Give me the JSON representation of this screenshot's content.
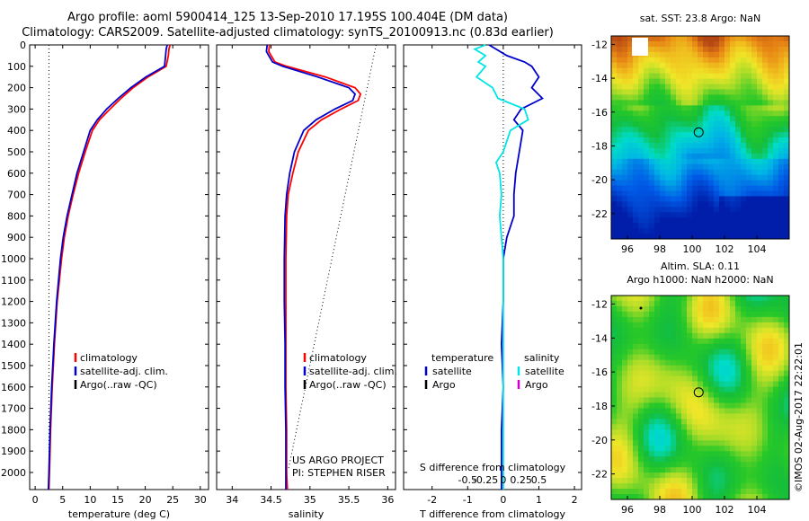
{
  "header": {
    "line1": "Argo profile: aoml 5900414_125 13-Sep-2010 17.195S 100.404E (DM data)",
    "line2": "Climatology: CARS2009. Satellite-adjusted climatology: synTS_20100913.nc (0.83d earlier)"
  },
  "colors": {
    "climatology": "#ff0000",
    "satellite": "#0000cc",
    "argo": "#000000",
    "sat_salinity": "#00e5e5",
    "argo_salinity": "#cc00cc"
  },
  "footer": {
    "stamp": "©IMOS 02-Aug-2017 22:22:01"
  },
  "chart_data": [
    {
      "type": "line",
      "id": "temperature",
      "xlabel": "temperature (deg C)",
      "ylabel": "",
      "xlim": [
        -1,
        31.5
      ],
      "ylim": [
        2080,
        0
      ],
      "xticks": [
        0,
        5,
        10,
        15,
        20,
        25,
        30
      ],
      "xticklabels": [
        "0",
        "5",
        "10",
        "15",
        "20",
        "25",
        "30"
      ],
      "yticks": [
        0,
        100,
        200,
        300,
        400,
        500,
        600,
        700,
        800,
        900,
        1000,
        1100,
        1200,
        1300,
        1400,
        1500,
        1600,
        1700,
        1800,
        1900,
        2000
      ],
      "depth": [
        0,
        20,
        50,
        100,
        150,
        200,
        250,
        300,
        350,
        400,
        500,
        600,
        700,
        800,
        900,
        1000,
        1200,
        1400,
        1600,
        1800,
        2000,
        2080
      ],
      "series": [
        {
          "name": "climatology",
          "color": "#ff0000",
          "values": [
            24.5,
            24.3,
            24.2,
            23.8,
            20.5,
            17.8,
            15.6,
            13.6,
            11.7,
            10.4,
            9.1,
            7.9,
            6.9,
            6.0,
            5.3,
            4.8,
            4.0,
            3.5,
            3.1,
            2.8,
            2.6,
            2.5
          ]
        },
        {
          "name": "satellite-adj. clim.",
          "color": "#0000cc",
          "values": [
            24.0,
            23.8,
            23.7,
            23.5,
            20.1,
            17.4,
            15.1,
            13.0,
            11.3,
            10.0,
            8.8,
            7.6,
            6.7,
            5.8,
            5.1,
            4.6,
            3.9,
            3.4,
            3.0,
            2.7,
            2.5,
            2.4
          ]
        }
      ],
      "reference": {
        "x": 2.5
      },
      "legend": [
        "climatology",
        "satellite-adj. clim.",
        "Argo(..raw -QC)"
      ]
    },
    {
      "type": "line",
      "id": "salinity",
      "xlabel": "salinity",
      "ylabel": "",
      "xlim": [
        33.8,
        36.1
      ],
      "ylim": [
        2080,
        0
      ],
      "xticks": [
        34,
        34.5,
        35,
        35.5,
        36
      ],
      "xticklabels": [
        "34",
        "34.5",
        "35",
        "35.5",
        "36"
      ],
      "depth": [
        0,
        30,
        50,
        80,
        100,
        150,
        200,
        230,
        260,
        300,
        350,
        400,
        500,
        600,
        700,
        800,
        1000,
        1200,
        1400,
        1600,
        1800,
        2000,
        2080
      ],
      "series": [
        {
          "name": "climatology",
          "color": "#ff0000",
          "values": [
            34.48,
            34.47,
            34.5,
            34.55,
            34.7,
            35.2,
            35.58,
            35.65,
            35.62,
            35.4,
            35.15,
            34.98,
            34.85,
            34.78,
            34.72,
            34.7,
            34.69,
            34.69,
            34.69,
            34.69,
            34.7,
            34.7,
            34.71
          ]
        },
        {
          "name": "satellite-adj. clim.",
          "color": "#0000cc",
          "values": [
            34.45,
            34.44,
            34.47,
            34.52,
            34.65,
            35.1,
            35.5,
            35.58,
            35.55,
            35.32,
            35.08,
            34.92,
            34.8,
            34.74,
            34.7,
            34.68,
            34.67,
            34.67,
            34.68,
            34.68,
            34.69,
            34.69,
            34.69
          ]
        }
      ],
      "reference_line": {
        "x": [
          35.85,
          34.72
        ],
        "depth": [
          0,
          1990
        ]
      },
      "legend": [
        "climatology",
        "satellite-adj. clim.",
        "Argo(..raw -QC)"
      ],
      "annotations": [
        "US ARGO PROJECT",
        "PI: STEPHEN RISER"
      ]
    },
    {
      "type": "line",
      "id": "difference",
      "xlabel": "T difference from climatology",
      "xlabel_top": "S difference from climatology",
      "xlim": [
        -2.8,
        2.2
      ],
      "ylim": [
        2080,
        0
      ],
      "xticks": [
        -2,
        -1,
        0,
        1,
        2
      ],
      "xticklabels": [
        "-2",
        "-1",
        "0",
        "1",
        "2"
      ],
      "sticks": [
        -0.5,
        -0.25,
        0,
        0.25,
        0.5
      ],
      "sticklabels": [
        "-0.5",
        "-0.25",
        "0",
        "0.25",
        "0.5"
      ],
      "depth": [
        0,
        20,
        50,
        80,
        100,
        150,
        200,
        250,
        300,
        350,
        400,
        450,
        500,
        550,
        600,
        700,
        800,
        900,
        1000,
        1200,
        1400,
        1600,
        1800,
        2000,
        2080
      ],
      "series": [
        {
          "name": "temperature satellite",
          "color": "#0000cc",
          "values": [
            -0.4,
            -0.2,
            0.1,
            0.6,
            0.8,
            1.0,
            0.8,
            1.1,
            0.5,
            0.3,
            0.55,
            0.5,
            0.45,
            0.4,
            0.35,
            0.3,
            0.3,
            0.1,
            0.0,
            0.0,
            -0.05,
            0.0,
            -0.05,
            -0.05,
            -0.05
          ]
        },
        {
          "name": "salinity satellite",
          "color": "#00e5e5",
          "values": [
            -0.5,
            -0.8,
            -0.5,
            -0.7,
            -0.5,
            -0.75,
            -0.3,
            -0.15,
            0.6,
            0.7,
            0.2,
            0.1,
            0.0,
            -0.2,
            -0.1,
            -0.05,
            -0.1,
            -0.05,
            0.0,
            0.0,
            0.0,
            0.0,
            0.0,
            0.0,
            0.0
          ]
        }
      ],
      "legend": {
        "temperature": "temperature",
        "salinity": "salinity",
        "satellite": "satellite",
        "argo": "Argo"
      }
    },
    {
      "type": "heatmap",
      "id": "sst_map",
      "title": "sat. SST: 23.8  Argo: NaN",
      "xlim": [
        95,
        106
      ],
      "ylim": [
        -23.5,
        -11.5
      ],
      "xticks": [
        96,
        98,
        100,
        102,
        104
      ],
      "xticklabels": [
        "96",
        "98",
        "100",
        "102",
        "104"
      ],
      "yticks": [
        -12,
        -14,
        -16,
        -18,
        -20,
        -22
      ],
      "yticklabels": [
        "-12",
        "-14",
        "-16",
        "-18",
        "-20",
        "-22"
      ],
      "marker": {
        "lon": 100.404,
        "lat": -17.195
      }
    },
    {
      "type": "heatmap",
      "id": "sla_map",
      "title_line1": "Altim. SLA: 0.11",
      "title_line2": "Argo h1000: NaN  h2000: NaN",
      "xlim": [
        95,
        106
      ],
      "ylim": [
        -23.5,
        -11.5
      ],
      "xticks": [
        96,
        98,
        100,
        102,
        104
      ],
      "xticklabels": [
        "96",
        "98",
        "100",
        "102",
        "104"
      ],
      "yticks": [
        -12,
        -14,
        -16,
        -18,
        -20,
        -22
      ],
      "yticklabels": [
        "-12",
        "-14",
        "-16",
        "-18",
        "-20",
        "-22"
      ],
      "marker": {
        "lon": 100.404,
        "lat": -17.195
      }
    }
  ]
}
